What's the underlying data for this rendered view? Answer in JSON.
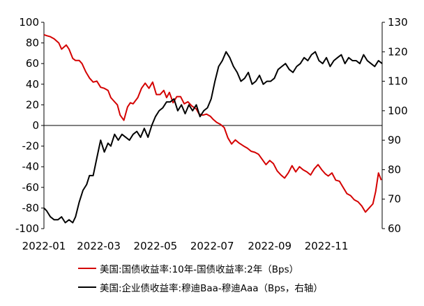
{
  "chart_data": {
    "type": "line",
    "title": "",
    "x_tick_labels": [
      "2022-01",
      "2022-03",
      "2022-05",
      "2022-07",
      "2022-09",
      "2022-11"
    ],
    "x_range": [
      "2022-01-01",
      "2022-12-31"
    ],
    "y_left": {
      "range": [
        -100,
        100
      ],
      "ticks": [
        "100",
        "80",
        "60",
        "40",
        "20",
        "0",
        "-20",
        "-40",
        "-60",
        "-80",
        "-100"
      ]
    },
    "y_right": {
      "range": [
        60,
        130
      ],
      "ticks": [
        "130",
        "120",
        "110",
        "100",
        "90",
        "80",
        "70",
        "60"
      ]
    },
    "grid": false,
    "legend_position": "bottom",
    "series": [
      {
        "name": "美国:国债收益率:10年-国债收益率:2年（Bps）",
        "axis": "left",
        "color": "#d40000",
        "x": [
          "2022-01-01",
          "2022-01-04",
          "2022-01-08",
          "2022-01-12",
          "2022-01-17",
          "2022-01-20",
          "2022-01-25",
          "2022-01-28",
          "2022-02-01",
          "2022-02-04",
          "2022-02-08",
          "2022-02-11",
          "2022-02-15",
          "2022-02-19",
          "2022-02-23",
          "2022-02-27",
          "2022-03-03",
          "2022-03-07",
          "2022-03-11",
          "2022-03-14",
          "2022-03-17",
          "2022-03-21",
          "2022-03-24",
          "2022-03-28",
          "2022-04-01",
          "2022-04-04",
          "2022-04-07",
          "2022-04-12",
          "2022-04-16",
          "2022-04-20",
          "2022-04-24",
          "2022-04-28",
          "2022-05-02",
          "2022-05-06",
          "2022-05-10",
          "2022-05-13",
          "2022-05-16",
          "2022-05-20",
          "2022-05-24",
          "2022-05-28",
          "2022-06-01",
          "2022-06-05",
          "2022-06-09",
          "2022-06-14",
          "2022-06-17",
          "2022-06-21",
          "2022-06-25",
          "2022-06-29",
          "2022-07-02",
          "2022-07-06",
          "2022-07-10",
          "2022-07-14",
          "2022-07-18",
          "2022-07-22",
          "2022-07-26",
          "2022-07-30",
          "2022-08-04",
          "2022-08-08",
          "2022-08-12",
          "2022-08-16",
          "2022-08-20",
          "2022-08-24",
          "2022-08-28",
          "2022-09-01",
          "2022-09-05",
          "2022-09-09",
          "2022-09-13",
          "2022-09-17",
          "2022-09-21",
          "2022-09-25",
          "2022-09-29",
          "2022-10-03",
          "2022-10-07",
          "2022-10-11",
          "2022-10-15",
          "2022-10-19",
          "2022-10-23",
          "2022-10-27",
          "2022-10-31",
          "2022-11-03",
          "2022-11-07",
          "2022-11-11",
          "2022-11-15",
          "2022-11-19",
          "2022-11-23",
          "2022-11-27",
          "2022-12-01",
          "2022-12-05",
          "2022-12-09",
          "2022-12-13",
          "2022-12-17",
          "2022-12-21",
          "2022-12-24",
          "2022-12-27",
          "2022-12-30"
        ],
        "values": [
          88,
          87,
          86,
          84,
          80,
          74,
          78,
          74,
          65,
          63,
          63,
          60,
          52,
          46,
          42,
          43,
          37,
          36,
          34,
          27,
          24,
          20,
          10,
          5,
          18,
          22,
          21,
          27,
          36,
          41,
          36,
          42,
          30,
          30,
          34,
          27,
          32,
          22,
          28,
          28,
          21,
          23,
          19,
          16,
          11,
          10,
          11,
          9,
          6,
          3,
          1,
          -2,
          -12,
          -18,
          -14,
          -17,
          -20,
          -22,
          -25,
          -26,
          -28,
          -33,
          -38,
          -34,
          -37,
          -44,
          -48,
          -51,
          -46,
          -39,
          -45,
          -40,
          -43,
          -45,
          -48,
          -42,
          -38,
          -43,
          -47,
          -49,
          -46,
          -53,
          -54,
          -60,
          -66,
          -68,
          -72,
          -74,
          -78,
          -84,
          -80,
          -76,
          -64,
          -46,
          -53
        ]
      },
      {
        "name": "美国:企业债收益率:穆迪Baa-穆迪Aaa（Bps，右轴）",
        "axis": "right",
        "color": "#000000",
        "x": [
          "2022-01-01",
          "2022-01-04",
          "2022-01-08",
          "2022-01-12",
          "2022-01-16",
          "2022-01-20",
          "2022-01-24",
          "2022-01-28",
          "2022-02-01",
          "2022-02-04",
          "2022-02-08",
          "2022-02-12",
          "2022-02-16",
          "2022-02-19",
          "2022-02-23",
          "2022-02-27",
          "2022-03-03",
          "2022-03-07",
          "2022-03-11",
          "2022-03-14",
          "2022-03-18",
          "2022-03-22",
          "2022-03-26",
          "2022-03-30",
          "2022-04-03",
          "2022-04-07",
          "2022-04-11",
          "2022-04-15",
          "2022-04-19",
          "2022-04-23",
          "2022-04-27",
          "2022-05-01",
          "2022-05-05",
          "2022-05-09",
          "2022-05-13",
          "2022-05-17",
          "2022-05-21",
          "2022-05-25",
          "2022-05-29",
          "2022-06-02",
          "2022-06-06",
          "2022-06-10",
          "2022-06-14",
          "2022-06-18",
          "2022-06-22",
          "2022-06-26",
          "2022-06-30",
          "2022-07-04",
          "2022-07-08",
          "2022-07-12",
          "2022-07-16",
          "2022-07-20",
          "2022-07-24",
          "2022-07-28",
          "2022-08-01",
          "2022-08-05",
          "2022-08-09",
          "2022-08-13",
          "2022-08-17",
          "2022-08-21",
          "2022-08-25",
          "2022-08-29",
          "2022-09-02",
          "2022-09-06",
          "2022-09-10",
          "2022-09-14",
          "2022-09-18",
          "2022-09-22",
          "2022-09-26",
          "2022-09-30",
          "2022-10-04",
          "2022-10-08",
          "2022-10-12",
          "2022-10-16",
          "2022-10-20",
          "2022-10-24",
          "2022-10-28",
          "2022-11-01",
          "2022-11-05",
          "2022-11-09",
          "2022-11-13",
          "2022-11-17",
          "2022-11-21",
          "2022-11-25",
          "2022-11-29",
          "2022-12-03",
          "2022-12-07",
          "2022-12-11",
          "2022-12-15",
          "2022-12-19",
          "2022-12-23",
          "2022-12-27",
          "2022-12-31"
        ],
        "values": [
          67,
          66,
          64,
          63,
          63,
          64,
          62,
          63,
          62,
          64,
          69,
          73,
          75,
          78,
          78,
          84,
          90,
          86,
          89,
          88,
          92,
          90,
          92,
          91,
          90,
          92,
          93,
          91,
          94,
          91,
          95,
          98,
          100,
          101,
          103,
          103,
          104,
          100,
          102,
          99,
          102,
          100,
          102,
          98,
          100,
          101,
          104,
          110,
          115,
          117,
          120,
          118,
          115,
          113,
          110,
          111,
          113,
          109,
          110,
          112,
          109,
          110,
          110,
          111,
          114,
          115,
          116,
          114,
          113,
          115,
          116,
          118,
          117,
          119,
          120,
          117,
          116,
          118,
          115,
          117,
          118,
          119,
          116,
          118,
          117,
          117,
          116,
          119,
          117,
          116,
          115,
          117,
          116
        ]
      }
    ]
  }
}
